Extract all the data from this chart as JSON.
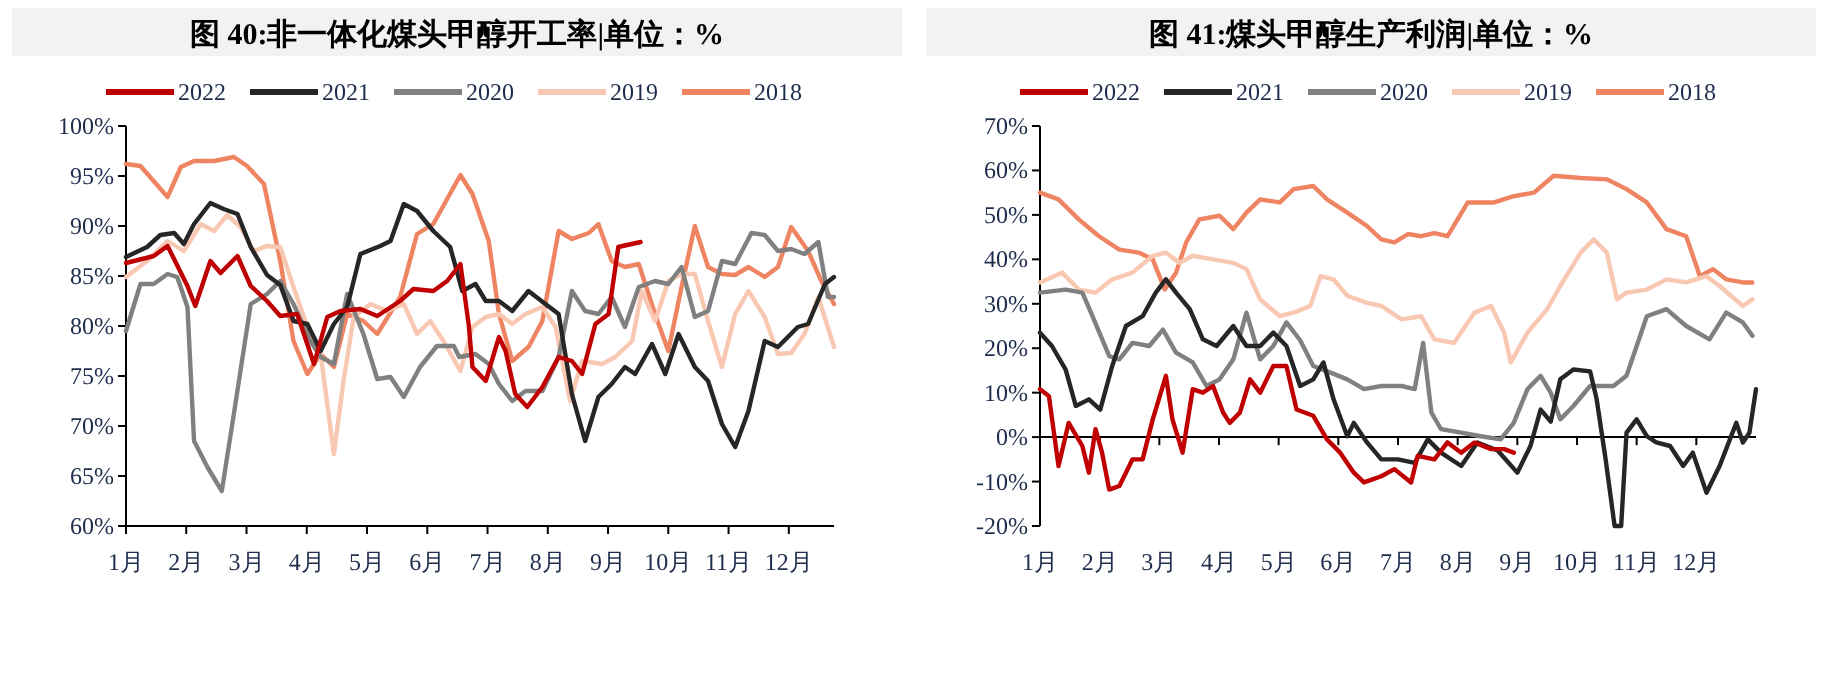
{
  "chart_data": [
    {
      "type": "line",
      "title": "图 40:非一体化煤头甲醇开工率|单位：%",
      "legend": "top",
      "grid": false,
      "xlim": [
        1,
        12.75
      ],
      "xticks": [
        {
          "value": 1,
          "label": "1月"
        },
        {
          "value": 2,
          "label": "2月"
        },
        {
          "value": 3,
          "label": "3月"
        },
        {
          "value": 4,
          "label": "4月"
        },
        {
          "value": 5,
          "label": "5月"
        },
        {
          "value": 6,
          "label": "6月"
        },
        {
          "value": 7,
          "label": "7月"
        },
        {
          "value": 8,
          "label": "8月"
        },
        {
          "value": 9,
          "label": "9月"
        },
        {
          "value": 10,
          "label": "10月"
        },
        {
          "value": 11,
          "label": "11月"
        },
        {
          "value": 12,
          "label": "12月"
        }
      ],
      "ylim": [
        60,
        100
      ],
      "yticks": [
        {
          "value": 60,
          "label": "60%"
        },
        {
          "value": 65,
          "label": "65%"
        },
        {
          "value": 70,
          "label": "70%"
        },
        {
          "value": 75,
          "label": "75%"
        },
        {
          "value": 80,
          "label": "80%"
        },
        {
          "value": 85,
          "label": "85%"
        },
        {
          "value": 90,
          "label": "90%"
        },
        {
          "value": 95,
          "label": "95%"
        },
        {
          "value": 100,
          "label": "100%"
        }
      ],
      "series": [
        {
          "name": "2022",
          "color": "#c00000",
          "x": [
            1.0,
            1.46,
            1.69,
            2.02,
            2.15,
            2.4,
            2.57,
            2.85,
            3.07,
            3.34,
            3.56,
            3.84,
            4.12,
            4.34,
            4.56,
            4.89,
            5.17,
            5.55,
            5.77,
            6.1,
            6.33,
            6.55,
            6.69,
            6.75,
            6.97,
            7.19,
            7.3,
            7.46,
            7.66,
            7.91,
            8.18,
            8.4,
            8.57,
            8.79,
            9.01,
            9.17,
            9.54
          ],
          "values": [
            86.3,
            87,
            88,
            84,
            82,
            86.5,
            85.3,
            87,
            84,
            82.5,
            81,
            81.2,
            76.2,
            80.9,
            81.5,
            81.7,
            81,
            82.5,
            83.7,
            83.5,
            84.5,
            86.2,
            80,
            75.9,
            74.5,
            78.9,
            77.5,
            73.2,
            71.9,
            73.9,
            76.9,
            76.5,
            75.2,
            80.2,
            81.2,
            87.9,
            88.4
          ]
        },
        {
          "name": "2021",
          "color": "#262626",
          "x": [
            1.0,
            1.35,
            1.57,
            1.8,
            1.96,
            2.13,
            2.4,
            2.62,
            2.85,
            3.07,
            3.34,
            3.56,
            3.78,
            4.01,
            4.23,
            4.45,
            4.67,
            4.89,
            5.22,
            5.39,
            5.61,
            5.83,
            6.1,
            6.38,
            6.58,
            6.8,
            6.97,
            7.19,
            7.41,
            7.68,
            7.96,
            8.18,
            8.4,
            8.62,
            8.84,
            9.06,
            9.28,
            9.45,
            9.73,
            9.95,
            10.17,
            10.44,
            10.66,
            10.89,
            11.11,
            11.33,
            11.6,
            11.82,
            12.15,
            12.32,
            12.6,
            12.75
          ],
          "values": [
            86.9,
            87.9,
            89.1,
            89.3,
            88.2,
            90.2,
            92.3,
            91.7,
            91.2,
            87.9,
            85.1,
            84.1,
            80.5,
            80.2,
            77.5,
            80.2,
            81.9,
            87.2,
            88,
            88.5,
            92.2,
            91.5,
            89.5,
            87.9,
            83.5,
            84.2,
            82.5,
            82.5,
            81.5,
            83.5,
            82.2,
            81.2,
            73.2,
            68.5,
            72.9,
            74.2,
            75.9,
            75.2,
            78.2,
            75.2,
            79.2,
            75.9,
            74.5,
            70.2,
            67.9,
            71.5,
            78.5,
            77.9,
            79.9,
            80.2,
            84.2,
            84.9
          ]
        },
        {
          "name": "2020",
          "color": "#808080",
          "x": [
            1.0,
            1.24,
            1.46,
            1.69,
            1.85,
            2.02,
            2.13,
            2.35,
            2.59,
            2.79,
            3.07,
            3.34,
            3.56,
            3.78,
            4.06,
            4.23,
            4.45,
            4.67,
            4.94,
            5.17,
            5.39,
            5.61,
            5.88,
            6.16,
            6.44,
            6.53,
            6.8,
            7.02,
            7.19,
            7.41,
            7.63,
            7.91,
            8.18,
            8.4,
            8.62,
            8.84,
            9.06,
            9.28,
            9.51,
            9.78,
            10.0,
            10.22,
            10.44,
            10.66,
            10.89,
            11.11,
            11.38,
            11.6,
            11.82,
            12.04,
            12.26,
            12.49,
            12.65,
            12.75
          ],
          "values": [
            79.5,
            84.2,
            84.2,
            85.2,
            84.9,
            81.9,
            68.5,
            65.9,
            63.5,
            71.2,
            82.2,
            83.2,
            84.5,
            82.2,
            78.5,
            76.9,
            76.2,
            83.2,
            79.2,
            74.7,
            74.9,
            72.9,
            75.9,
            78,
            78,
            76.9,
            77.2,
            76.2,
            74.2,
            72.5,
            73.5,
            73.5,
            76.9,
            83.5,
            81.5,
            81.2,
            82.9,
            79.9,
            83.9,
            84.5,
            84.2,
            85.9,
            80.9,
            81.5,
            86.5,
            86.2,
            89.3,
            89.1,
            87.5,
            87.7,
            87.2,
            88.4,
            82.9,
            82.9
          ]
        },
        {
          "name": "2019",
          "color": "#f9c8b2",
          "x": [
            1.0,
            1.35,
            1.69,
            1.96,
            2.24,
            2.46,
            2.68,
            2.9,
            3.12,
            3.34,
            3.56,
            3.78,
            4.01,
            4.23,
            4.45,
            4.61,
            4.78,
            5.06,
            5.33,
            5.61,
            5.83,
            6.05,
            6.27,
            6.55,
            6.75,
            6.97,
            7.19,
            7.41,
            7.63,
            7.91,
            8.13,
            8.37,
            8.57,
            8.9,
            9.12,
            9.4,
            9.56,
            9.78,
            10.0,
            10.22,
            10.44,
            10.66,
            10.89,
            11.11,
            11.33,
            11.6,
            11.82,
            12.04,
            12.26,
            12.49,
            12.75
          ],
          "values": [
            84.9,
            86.5,
            88.5,
            87.5,
            90.2,
            89.5,
            91.1,
            89.9,
            87.5,
            88,
            87.9,
            83.9,
            79.9,
            77.2,
            67.2,
            74.5,
            80.9,
            82.2,
            81.5,
            82.2,
            79.2,
            80.5,
            78.5,
            75.5,
            79.9,
            80.9,
            81.2,
            80.2,
            81.2,
            81.9,
            79.9,
            72.5,
            76.5,
            76.2,
            76.9,
            78.5,
            83.5,
            80.5,
            84.5,
            85.2,
            85.2,
            80.5,
            75.9,
            81.2,
            83.5,
            80.9,
            77.2,
            77.3,
            79.2,
            82.9,
            77.9
          ]
        },
        {
          "name": "2018",
          "color": "#ef8462",
          "x": [
            1.0,
            1.24,
            1.69,
            1.91,
            2.13,
            2.46,
            2.79,
            3.01,
            3.29,
            3.56,
            3.78,
            4.01,
            4.23,
            4.45,
            4.67,
            4.94,
            5.17,
            5.55,
            5.83,
            6.1,
            6.55,
            6.75,
            7.02,
            7.19,
            7.41,
            7.68,
            7.91,
            8.18,
            8.4,
            8.68,
            8.84,
            9.06,
            9.28,
            9.51,
            9.78,
            10.0,
            10.22,
            10.44,
            10.66,
            10.89,
            11.11,
            11.33,
            11.6,
            11.82,
            12.04,
            12.32,
            12.54,
            12.75
          ],
          "values": [
            96.2,
            96,
            92.9,
            95.9,
            96.5,
            96.5,
            96.9,
            96,
            94.2,
            86.5,
            78.5,
            75.2,
            77.2,
            75.9,
            81.2,
            80.5,
            79.2,
            82.9,
            89.2,
            90.2,
            95.1,
            93.2,
            88.5,
            81.2,
            76.5,
            77.9,
            80.5,
            89.5,
            88.7,
            89.3,
            90.2,
            86.5,
            85.9,
            86.2,
            81.2,
            77.5,
            83.9,
            90,
            85.9,
            85.2,
            85.1,
            85.9,
            84.9,
            85.9,
            89.9,
            87.5,
            84.5,
            82.2
          ]
        }
      ]
    },
    {
      "type": "line",
      "title": "图 41:煤头甲醇生产利润|单位：%",
      "legend": "top",
      "grid": false,
      "xlim": [
        1,
        13
      ],
      "ref_lines": [
        {
          "axis": "y",
          "value": 0,
          "color": "#000000"
        }
      ],
      "xticks": [
        {
          "value": 1,
          "label": "1月"
        },
        {
          "value": 2,
          "label": "2月"
        },
        {
          "value": 3,
          "label": "3月"
        },
        {
          "value": 4,
          "label": "4月"
        },
        {
          "value": 5,
          "label": "5月"
        },
        {
          "value": 6,
          "label": "6月"
        },
        {
          "value": 7,
          "label": "7月"
        },
        {
          "value": 8,
          "label": "8月"
        },
        {
          "value": 9,
          "label": "9月"
        },
        {
          "value": 10,
          "label": "10月"
        },
        {
          "value": 11,
          "label": "11月"
        },
        {
          "value": 12,
          "label": "12月"
        }
      ],
      "ylim": [
        -20,
        70
      ],
      "yticks": [
        {
          "value": -20,
          "label": "-20%"
        },
        {
          "value": -10,
          "label": "-10%"
        },
        {
          "value": 0,
          "label": "0%"
        },
        {
          "value": 10,
          "label": "10%"
        },
        {
          "value": 20,
          "label": "20%"
        },
        {
          "value": 30,
          "label": "30%"
        },
        {
          "value": 40,
          "label": "40%"
        },
        {
          "value": 50,
          "label": "50%"
        },
        {
          "value": 60,
          "label": "60%"
        },
        {
          "value": 70,
          "label": "70%"
        }
      ],
      "series": [
        {
          "name": "2022",
          "color": "#c00000",
          "x": [
            1.0,
            1.15,
            1.31,
            1.48,
            1.71,
            1.82,
            1.93,
            2.04,
            2.16,
            2.33,
            2.44,
            2.55,
            2.72,
            2.89,
            3.11,
            3.22,
            3.39,
            3.56,
            3.73,
            3.9,
            4.07,
            4.18,
            4.35,
            4.52,
            4.69,
            4.91,
            5.13,
            5.3,
            5.58,
            5.81,
            6.03,
            6.26,
            6.43,
            6.72,
            6.94,
            7.22,
            7.33,
            7.61,
            7.83,
            8.06,
            8.28,
            8.56,
            8.78,
            8.94
          ],
          "values": [
            10.8,
            9.2,
            -6.5,
            3.2,
            -2,
            -8,
            1.8,
            -3.5,
            -11.8,
            -11,
            -8,
            -5,
            -5,
            4,
            13.8,
            4,
            -3.5,
            10.8,
            10,
            11.5,
            5.5,
            3.2,
            5.5,
            13,
            10,
            16,
            16,
            6.2,
            4.8,
            -0.5,
            -3.5,
            -8,
            -10.2,
            -8.8,
            -7.2,
            -10.2,
            -4.2,
            -5,
            -1.2,
            -3.5,
            -1.2,
            -2.7,
            -2.7,
            -3.5
          ]
        },
        {
          "name": "2021",
          "color": "#262626",
          "x": [
            1.0,
            1.2,
            1.43,
            1.6,
            1.82,
            2.01,
            2.21,
            2.44,
            2.72,
            2.94,
            3.11,
            3.28,
            3.51,
            3.73,
            3.96,
            4.24,
            4.46,
            4.69,
            4.91,
            5.13,
            5.36,
            5.58,
            5.75,
            5.92,
            6.15,
            6.26,
            6.48,
            6.72,
            7.0,
            7.28,
            7.5,
            7.72,
            8.06,
            8.33,
            8.67,
            9.0,
            9.22,
            9.39,
            9.56,
            9.72,
            9.94,
            10.22,
            10.33,
            10.48,
            10.63,
            10.74,
            10.83,
            11.0,
            11.17,
            11.33,
            11.56,
            11.78,
            11.94,
            12.17,
            12.39,
            12.67,
            12.78,
            12.89,
            13.0
          ],
          "values": [
            23.5,
            20.5,
            15.2,
            7,
            8.5,
            6.2,
            16,
            25,
            27.2,
            32.5,
            35.5,
            32.5,
            28.8,
            22,
            20.5,
            25,
            20.5,
            20.5,
            23.5,
            20.5,
            11.5,
            13,
            16.8,
            8.5,
            0.2,
            3.2,
            -1.2,
            -5,
            -5,
            -5.8,
            -0.5,
            -3.5,
            -6.5,
            -1.2,
            -3,
            -8,
            -2,
            6.2,
            3.5,
            13,
            15.2,
            14.8,
            8.5,
            -5,
            -20,
            -20,
            1,
            4,
            0.2,
            -1.2,
            -2,
            -6.5,
            -3.5,
            -12.5,
            -6.5,
            3.2,
            -1.2,
            1,
            10.8
          ]
        },
        {
          "name": "2020",
          "color": "#808080",
          "x": [
            1.0,
            1.43,
            1.71,
            1.88,
            2.16,
            2.33,
            2.55,
            2.83,
            3.06,
            3.28,
            3.56,
            3.79,
            4.01,
            4.24,
            4.46,
            4.69,
            4.91,
            5.13,
            5.36,
            5.58,
            5.87,
            6.15,
            6.43,
            6.72,
            7.06,
            7.28,
            7.42,
            7.56,
            7.72,
            8.06,
            8.39,
            8.72,
            8.94,
            9.17,
            9.39,
            9.56,
            9.72,
            9.94,
            10.22,
            10.61,
            10.83,
            11.17,
            11.5,
            11.83,
            12.22,
            12.5,
            12.78,
            12.94
          ],
          "values": [
            32.5,
            33.2,
            32.5,
            27.2,
            18.2,
            17.5,
            21.2,
            20.5,
            24.2,
            19,
            16.8,
            11.5,
            13,
            17.5,
            28,
            17.5,
            20.5,
            25.8,
            21.8,
            16,
            14.5,
            13,
            10.8,
            11.5,
            11.5,
            10.8,
            21.2,
            5.5,
            1.8,
            1,
            0.2,
            -0.5,
            3.2,
            10.8,
            13.8,
            10,
            4,
            7,
            11.5,
            11.5,
            13.8,
            27.2,
            28.8,
            25,
            22,
            28,
            25.8,
            22.8
          ]
        },
        {
          "name": "2019",
          "color": "#f9c8b2",
          "x": [
            1.0,
            1.37,
            1.65,
            1.93,
            2.21,
            2.55,
            2.89,
            3.11,
            3.34,
            3.56,
            3.9,
            4.24,
            4.46,
            4.69,
            5.02,
            5.25,
            5.53,
            5.7,
            5.92,
            6.15,
            6.48,
            6.72,
            7.06,
            7.39,
            7.61,
            7.94,
            8.28,
            8.56,
            8.78,
            8.89,
            9.17,
            9.5,
            9.72,
            10.06,
            10.28,
            10.5,
            10.67,
            10.83,
            11.17,
            11.5,
            11.83,
            12.17,
            12.39,
            12.78,
            12.94
          ],
          "values": [
            34.8,
            37,
            33.2,
            32.5,
            35.5,
            37,
            40.8,
            41.5,
            39.2,
            40.8,
            40,
            39.2,
            37.8,
            31,
            27.2,
            28,
            29.5,
            36.2,
            35.5,
            31.8,
            30.2,
            29.5,
            26.5,
            27.2,
            22,
            21.2,
            28,
            29.5,
            23.5,
            16.8,
            23.5,
            28.8,
            34,
            41.5,
            44.5,
            41.5,
            31,
            32.5,
            33.2,
            35.5,
            34.8,
            36.2,
            34,
            29.5,
            31
          ]
        },
        {
          "name": "2018",
          "color": "#ef8462",
          "x": [
            1.0,
            1.31,
            1.65,
            1.99,
            2.33,
            2.66,
            2.89,
            3.09,
            3.28,
            3.45,
            3.67,
            4.01,
            4.24,
            4.46,
            4.69,
            5.02,
            5.25,
            5.58,
            5.81,
            6.15,
            6.48,
            6.72,
            6.94,
            7.17,
            7.39,
            7.61,
            7.83,
            8.17,
            8.61,
            8.94,
            9.28,
            9.61,
            10.06,
            10.5,
            10.83,
            11.17,
            11.5,
            11.83,
            12.06,
            12.28,
            12.5,
            12.78,
            12.94
          ],
          "values": [
            55,
            53.5,
            49,
            45.2,
            42.2,
            41.5,
            40,
            33.2,
            37,
            43.8,
            49,
            49.8,
            46.8,
            50.5,
            53.5,
            52.8,
            55.8,
            56.5,
            53.5,
            50.5,
            47.5,
            44.5,
            43.8,
            45.7,
            45.2,
            45.9,
            45.2,
            52.8,
            52.8,
            54.2,
            55,
            58.8,
            58.3,
            58,
            55.8,
            52.8,
            46.8,
            45.2,
            36.2,
            37.8,
            35.5,
            34.8,
            34.8
          ]
        }
      ]
    }
  ]
}
